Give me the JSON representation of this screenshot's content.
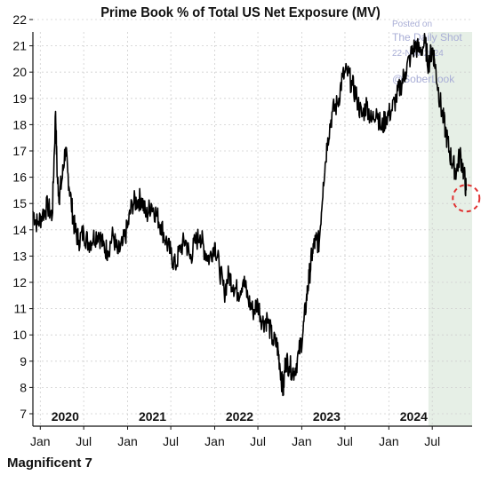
{
  "chart_data": {
    "type": "line",
    "title": "Prime Book % of Total US Net Exposure (MV)",
    "xlabel": "",
    "ylabel": "",
    "ylim": [
      7,
      22
    ],
    "xlim": [
      "2019-12-01",
      "2024-12-15"
    ],
    "y_ticks": [
      "22",
      "21",
      "20",
      "19",
      "18",
      "17",
      "16",
      "15",
      "14",
      "13",
      "12",
      "11",
      "10",
      "9",
      "8",
      "7"
    ],
    "month_ticks": [
      "Jan",
      "Jul",
      "Jan",
      "Jul",
      "Jan",
      "Jul",
      "Jan",
      "Jul",
      "Jan",
      "Jul"
    ],
    "year_labels": [
      "2020",
      "2021",
      "2022",
      "2023",
      "2024"
    ],
    "grid": true,
    "shaded_region": {
      "start": "2024-06-15",
      "end": "2024-12-15",
      "color": "#e6efe6"
    },
    "highlight_circle": {
      "x": "2024-11-20",
      "y": 15.2,
      "color": "#e03030"
    },
    "series": [
      {
        "color": "#000000",
        "x": [
          "2019-12-01",
          "2019-12-20",
          "2020-01-10",
          "2020-02-01",
          "2020-02-20",
          "2020-03-05",
          "2020-03-12",
          "2020-03-20",
          "2020-04-01",
          "2020-04-15",
          "2020-04-25",
          "2020-05-10",
          "2020-05-25",
          "2020-06-10",
          "2020-07-01",
          "2020-07-20",
          "2020-08-10",
          "2020-09-01",
          "2020-09-20",
          "2020-10-10",
          "2020-11-01",
          "2020-11-20",
          "2020-12-10",
          "2021-01-01",
          "2021-01-20",
          "2021-02-10",
          "2021-03-01",
          "2021-03-20",
          "2021-04-10",
          "2021-05-01",
          "2021-05-20",
          "2021-06-10",
          "2021-07-01",
          "2021-07-20",
          "2021-08-10",
          "2021-09-01",
          "2021-09-20",
          "2021-10-10",
          "2021-11-01",
          "2021-11-20",
          "2021-12-10",
          "2022-01-01",
          "2022-01-20",
          "2022-02-10",
          "2022-03-01",
          "2022-03-20",
          "2022-04-10",
          "2022-05-01",
          "2022-05-20",
          "2022-06-10",
          "2022-07-01",
          "2022-07-20",
          "2022-08-10",
          "2022-09-01",
          "2022-09-20",
          "2022-10-01",
          "2022-10-15",
          "2022-10-25",
          "2022-11-10",
          "2022-12-01",
          "2022-12-20",
          "2023-01-05",
          "2023-01-20",
          "2023-02-01",
          "2023-02-15",
          "2023-03-01",
          "2023-03-15",
          "2023-04-01",
          "2023-04-20",
          "2023-05-10",
          "2023-06-01",
          "2023-06-20",
          "2023-07-10",
          "2023-08-01",
          "2023-08-20",
          "2023-09-10",
          "2023-10-01",
          "2023-10-20",
          "2023-11-10",
          "2023-12-01",
          "2023-12-20",
          "2024-01-10",
          "2024-02-01",
          "2024-02-20",
          "2024-03-10",
          "2024-04-01",
          "2024-04-20",
          "2024-05-10",
          "2024-06-01",
          "2024-06-15",
          "2024-07-01",
          "2024-07-10",
          "2024-07-25",
          "2024-08-10",
          "2024-08-25",
          "2024-09-10",
          "2024-09-25",
          "2024-10-10",
          "2024-10-25",
          "2024-11-10",
          "2024-11-20"
        ],
        "values": [
          14.7,
          14.2,
          14.6,
          14.9,
          14.5,
          18.5,
          16.0,
          15.3,
          15.9,
          17.1,
          16.2,
          15.0,
          14.0,
          13.6,
          13.9,
          13.5,
          13.7,
          13.9,
          13.4,
          13.2,
          13.8,
          13.1,
          13.4,
          14.1,
          15.0,
          15.1,
          15.2,
          14.5,
          15.0,
          14.6,
          14.2,
          13.6,
          13.1,
          12.6,
          13.3,
          13.6,
          12.9,
          13.5,
          13.8,
          13.2,
          12.9,
          13.5,
          12.6,
          11.6,
          12.3,
          11.9,
          11.6,
          12.1,
          11.4,
          10.9,
          11.2,
          10.5,
          10.6,
          9.8,
          9.6,
          8.9,
          7.8,
          9.1,
          8.8,
          8.6,
          9.3,
          10.0,
          11.3,
          12.2,
          13.2,
          13.6,
          13.5,
          15.8,
          17.5,
          18.5,
          18.8,
          19.8,
          20.0,
          19.5,
          19.0,
          18.3,
          18.8,
          18.1,
          18.6,
          17.8,
          18.3,
          18.5,
          19.0,
          19.5,
          20.0,
          20.6,
          21.0,
          20.8,
          21.1,
          20.3,
          20.9,
          20.5,
          19.4,
          18.5,
          17.8,
          17.0,
          16.5,
          16.2,
          16.9,
          16.2,
          15.5
        ]
      }
    ]
  },
  "watermark": {
    "posted": "Posted on",
    "source": "The Daily Shot",
    "date": "22-Nov-2024",
    "handle": "@SoberLook"
  },
  "footer": "Magnificent 7"
}
